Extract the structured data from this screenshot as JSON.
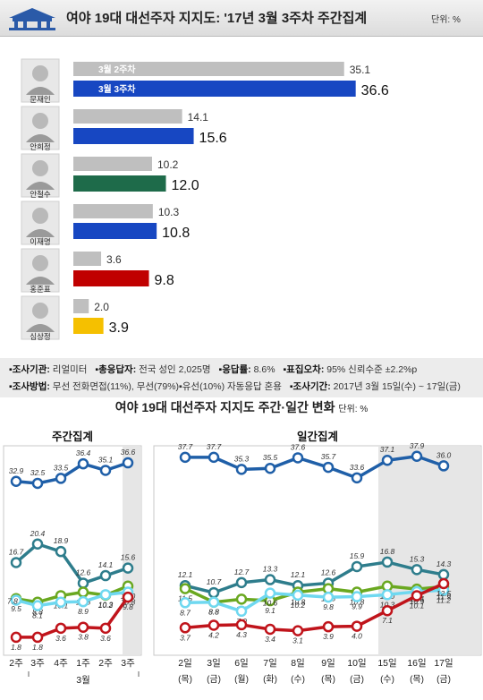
{
  "header": {
    "title": "여야 19대 대선주자 지지도: '17년 3월 3주차 주간집계",
    "unit": "단위: %"
  },
  "chart_data": [
    {
      "type": "bar",
      "series": [
        {
          "name": "3월 2주차",
          "color": "#bfbfbf",
          "values": [
            35.1,
            14.1,
            10.2,
            10.3,
            3.6,
            2.0
          ]
        },
        {
          "name": "3월 3주차",
          "values": [
            36.6,
            15.6,
            12.0,
            10.8,
            9.8,
            3.9
          ]
        }
      ],
      "categories": [
        "문재인",
        "안희정",
        "안철수",
        "이재명",
        "홍준표",
        "심상정"
      ],
      "candidate_colors": [
        "#1747c2",
        "#1747c2",
        "#1e6b4a",
        "#1747c2",
        "#c00000",
        "#f5c000"
      ],
      "xlim": [
        0,
        40
      ]
    },
    {
      "type": "line",
      "title": "주간집계",
      "x": [
        "2주",
        "3주",
        "4주",
        "1주",
        "2주",
        "3주"
      ],
      "x_sub": "3월",
      "highlight_last": true,
      "ylim": [
        0,
        40
      ],
      "series": [
        {
          "color": "#1f5fa8",
          "values": [
            32.9,
            32.5,
            33.5,
            36.4,
            35.1,
            36.6
          ]
        },
        {
          "color": "#2e7d8c",
          "values": [
            16.7,
            20.4,
            18.9,
            12.6,
            14.1,
            15.6
          ]
        },
        {
          "color": "#6aa820",
          "values": [
            9.5,
            8.8,
            10.1,
            10.8,
            10.2,
            12.0
          ]
        },
        {
          "color": "#6fd8f0",
          "values": [
            9.2,
            8.1,
            8.8,
            8.9,
            10.3,
            10.8
          ]
        },
        {
          "color": "#c0141b",
          "values": [
            1.8,
            1.8,
            3.6,
            3.8,
            3.6,
            9.8
          ]
        }
      ],
      "labels": [
        [
          "32.9",
          "32.5",
          "33.5",
          "36.4",
          "35.1",
          "36.6"
        ],
        [
          "16.7",
          "20.4",
          "18.9",
          "12.6",
          "14.1",
          "15.6"
        ],
        [
          "9.5",
          "8.8",
          "10.1",
          "10.8",
          "10.2",
          "12.0"
        ],
        [
          "",
          "8.1",
          "",
          "8.9",
          "10.3",
          "10.8"
        ],
        [
          "1.8",
          "1.8",
          "3.6",
          "3.8",
          "3.6",
          "9.8"
        ]
      ],
      "extra_labels": [
        "7.8"
      ]
    },
    {
      "type": "line",
      "title": "일간집계",
      "x": [
        "2일",
        "3일",
        "6일",
        "7일",
        "8일",
        "9일",
        "10일",
        "15일",
        "16일",
        "17일"
      ],
      "x_sub": [
        "(목)",
        "(금)",
        "(월)",
        "(화)",
        "(수)",
        "(목)",
        "(금)",
        "(수)",
        "(목)",
        "(금)"
      ],
      "highlight_from_index": 7,
      "ylim": [
        0,
        40
      ],
      "series": [
        {
          "color": "#1f5fa8",
          "values": [
            37.7,
            37.7,
            35.3,
            35.5,
            37.6,
            35.7,
            33.6,
            37.1,
            37.9,
            36.0
          ]
        },
        {
          "color": "#2e7d8c",
          "values": [
            12.1,
            10.7,
            12.7,
            13.3,
            12.1,
            12.6,
            15.9,
            16.8,
            15.3,
            14.3
          ]
        },
        {
          "color": "#6aa820",
          "values": [
            11.5,
            8.8,
            9.4,
            9.1,
            10.8,
            11.5,
            10.8,
            12.0,
            11.4,
            11.9
          ]
        },
        {
          "color": "#6fd8f0",
          "values": [
            8.7,
            8.8,
            7.0,
            10.6,
            10.2,
            9.8,
            9.9,
            10.3,
            10.9,
            11.2
          ]
        },
        {
          "color": "#c0141b",
          "values": [
            3.7,
            4.2,
            4.3,
            3.4,
            3.1,
            3.9,
            4.0,
            7.1,
            10.1,
            12.5
          ]
        }
      ],
      "labels": [
        [
          "37.7",
          "37.7",
          "35.3",
          "35.5",
          "37.6",
          "35.7",
          "33.6",
          "37.1",
          "37.9",
          "36.0"
        ],
        [
          "12.1",
          "10.7",
          "12.7",
          "13.3",
          "12.1",
          "12.6",
          "15.9",
          "16.8",
          "15.3",
          "14.3"
        ],
        [
          "11.5",
          "8.8",
          "9.4",
          "9.1",
          "10.8",
          "11.5",
          "10.8",
          "12.0",
          "11.4",
          "11.9"
        ],
        [
          "8.7",
          "8.8",
          "7.0",
          "10.6",
          "10.2",
          "9.8",
          "9.9",
          "10.3",
          "10.9",
          "11.2"
        ],
        [
          "3.7",
          "4.2",
          "4.3",
          "3.4",
          "3.1",
          "3.9",
          "4.0",
          "7.1",
          "10.1",
          "12.5"
        ]
      ]
    }
  ],
  "info": {
    "line1": [
      {
        "key": "▪조사기관:",
        "val": "리얼미터"
      },
      {
        "key": "▪총응답자:",
        "val": "전국 성인 2,025명"
      },
      {
        "key": "▪응답률:",
        "val": "8.6%"
      },
      {
        "key": "▪표집오차:",
        "val": "95% 신뢰수준 ±2.2%p"
      }
    ],
    "line2": [
      {
        "key": "▪조사방법:",
        "val": "무선 전화면접(11%), 무선(79%)▪유선(10%) 자동응답 혼용"
      },
      {
        "key": "▪조사기간:",
        "val": "2017년 3월 15일(수) ~ 17일(금)"
      }
    ]
  },
  "section2": {
    "title": "여야 19대 대선주자 지지도 주간·일간 변화",
    "unit": "단위: %"
  }
}
